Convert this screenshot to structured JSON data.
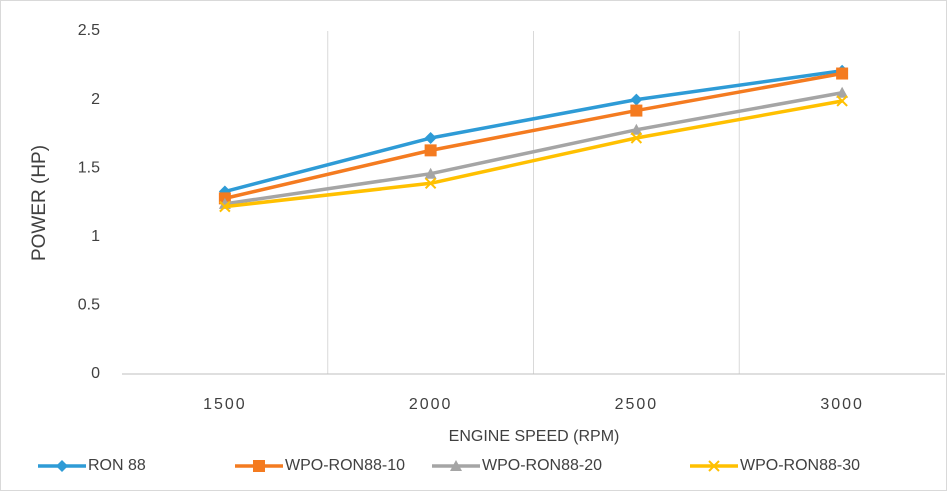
{
  "chart_data": {
    "type": "line",
    "x_label": "ENGINE SPEED (RPM)",
    "y_label": "POWER (HP)",
    "categories": [
      "1500",
      "2000",
      "2500",
      "3000"
    ],
    "series": [
      {
        "name": "RON 88",
        "color": "#2e9bd6",
        "marker": "diamond",
        "values": [
          1.33,
          1.72,
          2.0,
          2.21
        ]
      },
      {
        "name": "WPO-RON88-10",
        "color": "#f47b20",
        "marker": "square",
        "values": [
          1.28,
          1.63,
          1.92,
          2.19
        ]
      },
      {
        "name": "WPO-RON88-20",
        "color": "#a5a5a5",
        "marker": "triangle",
        "values": [
          1.24,
          1.46,
          1.78,
          2.05
        ]
      },
      {
        "name": "WPO-RON88-30",
        "color": "#ffc000",
        "marker": "x",
        "values": [
          1.22,
          1.39,
          1.72,
          1.99
        ]
      }
    ],
    "ylim": [
      0,
      2.5
    ],
    "yticks": [
      0,
      0.5,
      1,
      1.5,
      2,
      2.5
    ],
    "legend": "bottom"
  }
}
